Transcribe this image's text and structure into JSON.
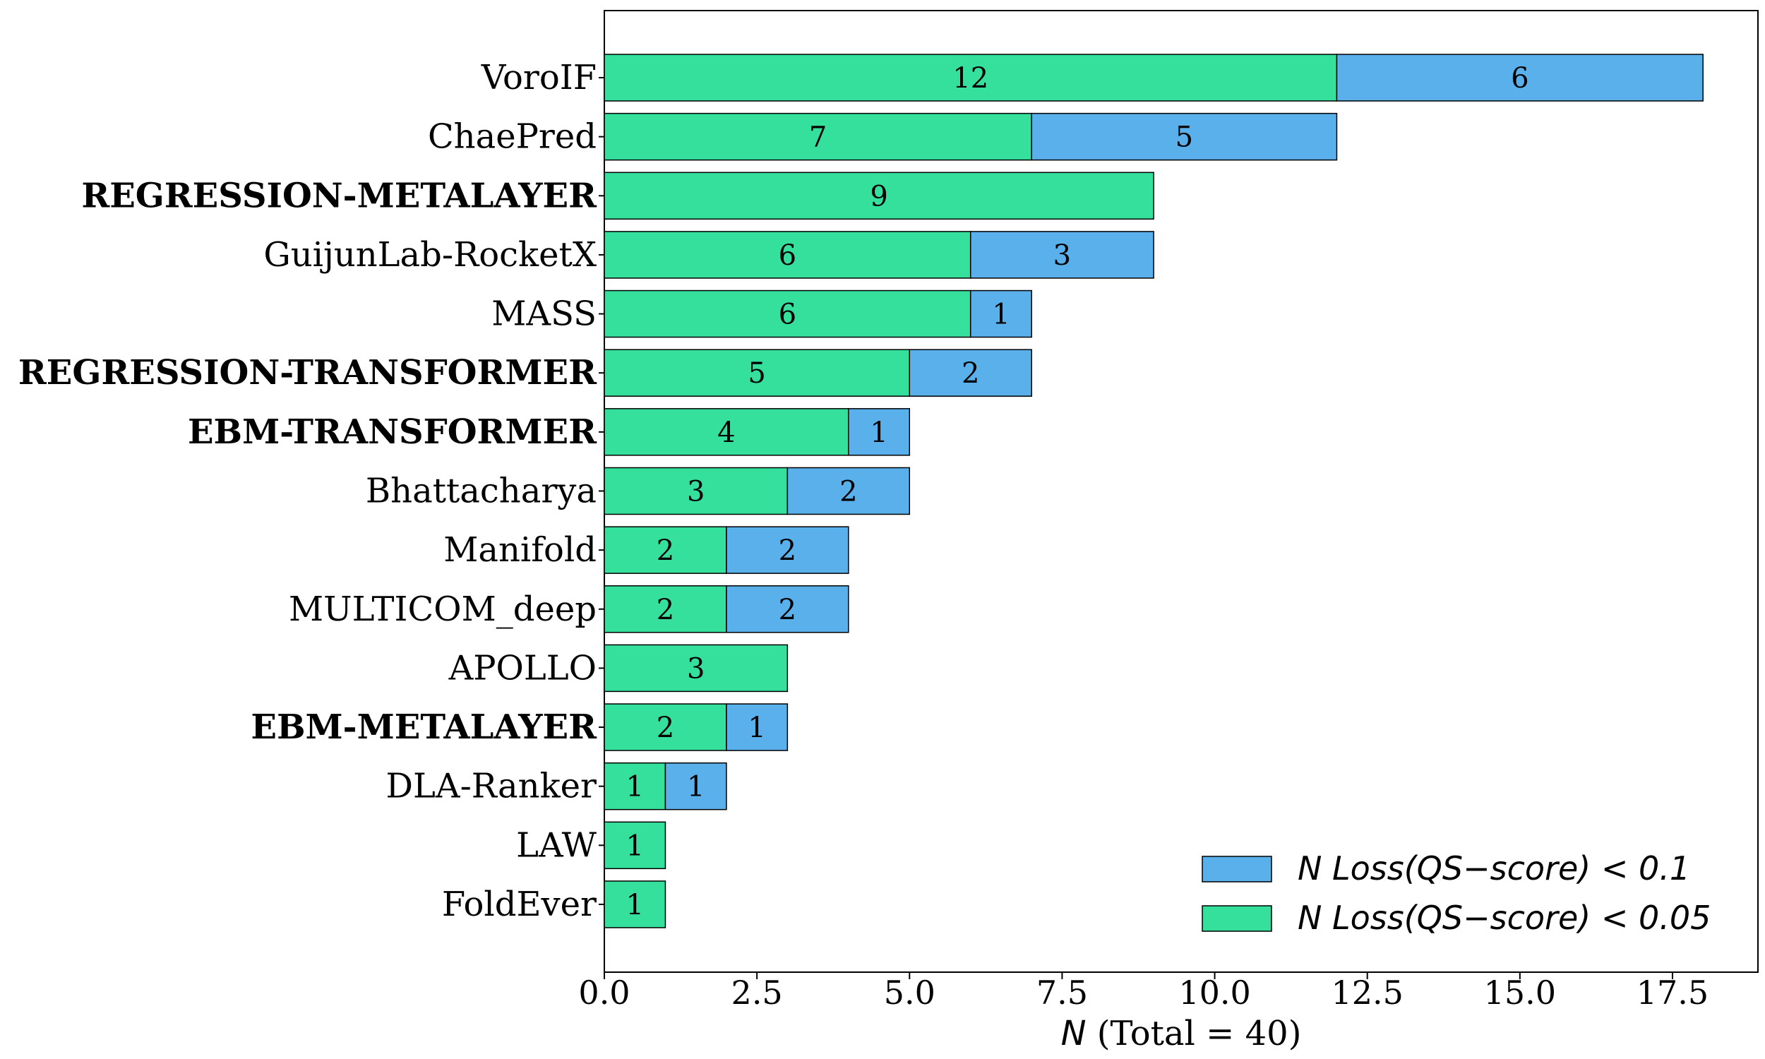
{
  "chart_data": {
    "type": "bar",
    "orientation": "horizontal",
    "stacked": true,
    "categories": [
      "VoroIF",
      "ChaePred",
      "REGRESSION-METALAYER",
      "GuijunLab-RocketX",
      "MASS",
      "REGRESSION-TRANSFORMER",
      "EBM-TRANSFORMER",
      "Bhattacharya",
      "Manifold",
      "MULTICOM_deep",
      "APOLLO",
      "EBM-METALAYER",
      "DLA-Ranker",
      "LAW",
      "FoldEver"
    ],
    "bold_categories": [
      "REGRESSION-METALAYER",
      "REGRESSION-TRANSFORMER",
      "EBM-TRANSFORMER",
      "EBM-METALAYER"
    ],
    "series": [
      {
        "name": "N Loss(QS−score) < 0.05",
        "color": "#34e09c",
        "values": [
          12,
          7,
          9,
          6,
          6,
          5,
          4,
          3,
          2,
          2,
          3,
          2,
          1,
          1,
          1
        ]
      },
      {
        "name": "N Loss(QS−score) < 0.1",
        "color": "#5ab0ea",
        "values": [
          6,
          5,
          0,
          3,
          1,
          2,
          1,
          2,
          2,
          2,
          0,
          1,
          1,
          0,
          0
        ]
      }
    ],
    "xlim": [
      0,
      18.9
    ],
    "xticks": [
      "0.0",
      "2.5",
      "5.0",
      "7.5",
      "10.0",
      "12.5",
      "15.0",
      "17.5"
    ],
    "xtick_values": [
      0,
      2.5,
      5,
      7.5,
      10,
      12.5,
      15,
      17.5
    ],
    "xlabel_italic": "N",
    "xlabel_rest": " (Total = 40)",
    "legend": {
      "placement": "lower-right"
    }
  }
}
